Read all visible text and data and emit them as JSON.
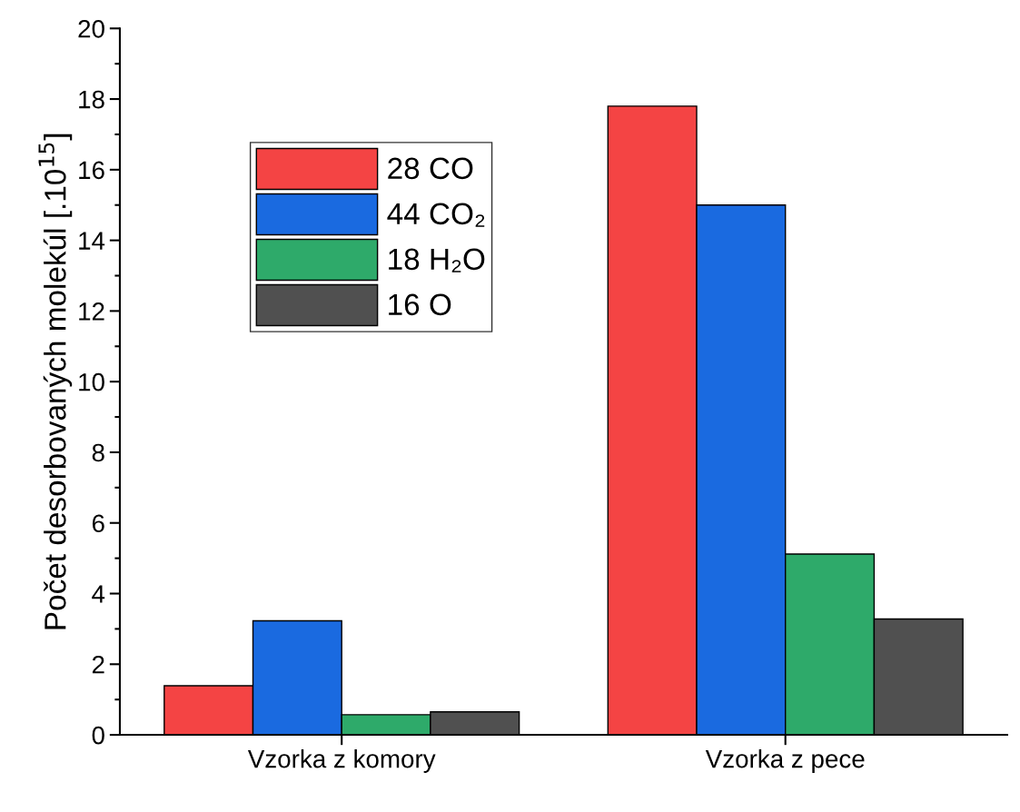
{
  "chart_data": {
    "type": "bar",
    "ylabel": "Počet desorbovaných molekúl [.10$^{15}$]",
    "categories": [
      "Vzorka z komory",
      "Vzorka z pece"
    ],
    "series": [
      {
        "name": "28 CO",
        "color": "#f44444",
        "values": [
          1.39,
          17.8
        ]
      },
      {
        "name": "44 CO₂",
        "color": "#1a6ae0",
        "values": [
          3.23,
          15.0
        ]
      },
      {
        "name": "18 H₂O",
        "color": "#2eaa6a",
        "values": [
          0.57,
          5.12
        ]
      },
      {
        "name": "16 O",
        "color": "#505050",
        "values": [
          0.65,
          3.28
        ]
      }
    ],
    "ylim": [
      0,
      20
    ],
    "yticks": [
      0,
      {
        "value": 1,
        "label": null
      },
      2,
      {
        "value": 3,
        "label": null
      },
      4,
      {
        "value": 5,
        "label": null
      },
      6,
      {
        "value": 7,
        "label": null
      },
      8,
      {
        "value": 9,
        "label": null
      },
      10,
      {
        "value": 11,
        "label": null
      },
      12,
      {
        "value": 13,
        "label": null
      },
      14,
      {
        "value": 15,
        "label": null
      },
      16,
      {
        "value": 17,
        "label": null
      },
      18,
      {
        "value": 19,
        "label": null
      },
      20
    ],
    "legend": "top left",
    "grid": false
  }
}
